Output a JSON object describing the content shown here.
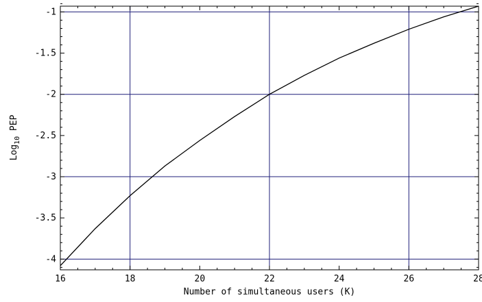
{
  "chart_data": {
    "type": "line",
    "title": "",
    "xlabel": "Number of simultaneous users (K)",
    "ylabel_main": "Log",
    "ylabel_sub": "10",
    "ylabel_tail": " PEP",
    "xlim": [
      16,
      28
    ],
    "ylim": [
      -4.13,
      -0.93
    ],
    "x_ticks": [
      16,
      18,
      20,
      22,
      24,
      26,
      28
    ],
    "y_ticks": [
      -4,
      -3.5,
      -3,
      -2.5,
      -2,
      -1.5,
      -1
    ],
    "x_gridlines": [
      18,
      22,
      26
    ],
    "y_gridlines": [
      -4,
      -3,
      -2,
      -1
    ],
    "grid_color": "#1f1f7a",
    "line_color": "#000000",
    "series": [
      {
        "x": [
          16,
          17,
          18,
          19,
          20,
          21,
          22,
          23,
          24,
          25,
          26,
          27,
          28
        ],
        "y": [
          -4.08,
          -3.63,
          -3.23,
          -2.87,
          -2.56,
          -2.27,
          -2.0,
          -1.77,
          -1.56,
          -1.38,
          -1.21,
          -1.06,
          -0.93
        ]
      }
    ]
  }
}
